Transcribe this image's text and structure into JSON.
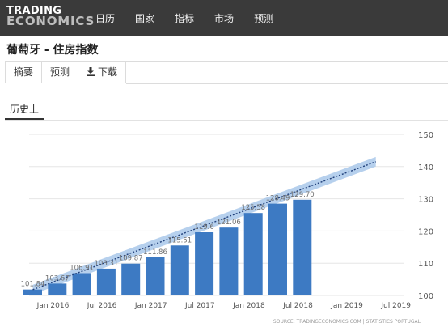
{
  "header": {
    "logo_line1": "TRADING",
    "logo_line2": "ECONOMICS",
    "nav": [
      "日历",
      "国家",
      "指标",
      "市场",
      "预测"
    ]
  },
  "page_title": "葡萄牙 - 住房指数",
  "tabs": [
    "摘要",
    "预测",
    "下载"
  ],
  "subtab": "历史上",
  "colors": {
    "bar": "#3d7ac3",
    "band": "#a9c8ea",
    "forecast_line": "#1f3f7a",
    "topbar": "#3a3a3a"
  },
  "chart_data": {
    "type": "bar",
    "series": [
      {
        "x": [
          "2016-Q1",
          "2016-Q2",
          "2016-Q3",
          "2016-Q4",
          "2017-Q1",
          "2017-Q2",
          "2017-Q3",
          "2017-Q4",
          "2018-Q1",
          "2018-Q2",
          "2018-Q3",
          "2018-Q4"
        ],
        "values": [
          101.84,
          103.67,
          106.91,
          108.31,
          109.87,
          111.86,
          115.51,
          119.6,
          121.06,
          125.58,
          128.49,
          129.7
        ],
        "labels": [
          "101.84",
          "103.67",
          "106.91",
          "108.31",
          "109.87",
          "111.86",
          "115.51",
          "119.6",
          "121.06",
          "125.58",
          "128.49",
          "129.70"
        ]
      }
    ],
    "forecast": {
      "x": [
        "2016-Q1",
        "2019-Q3"
      ],
      "values": [
        101.8,
        141.5
      ],
      "band_halfwidth": 1.5
    },
    "x_ticks": [
      "Jan 2016",
      "Jul 2016",
      "Jan 2017",
      "Jul 2017",
      "Jan 2018",
      "Jul 2018",
      "Jan 2019",
      "Jul 2019"
    ],
    "y_ticks": [
      100,
      110,
      120,
      130,
      140,
      150
    ],
    "ylim": [
      100,
      150
    ],
    "y_axis_side": "right",
    "gridlines": "horizontal",
    "source": "SOURCE: TRADINGECONOMICS.COM | STATISTICS PORTUGAL"
  }
}
